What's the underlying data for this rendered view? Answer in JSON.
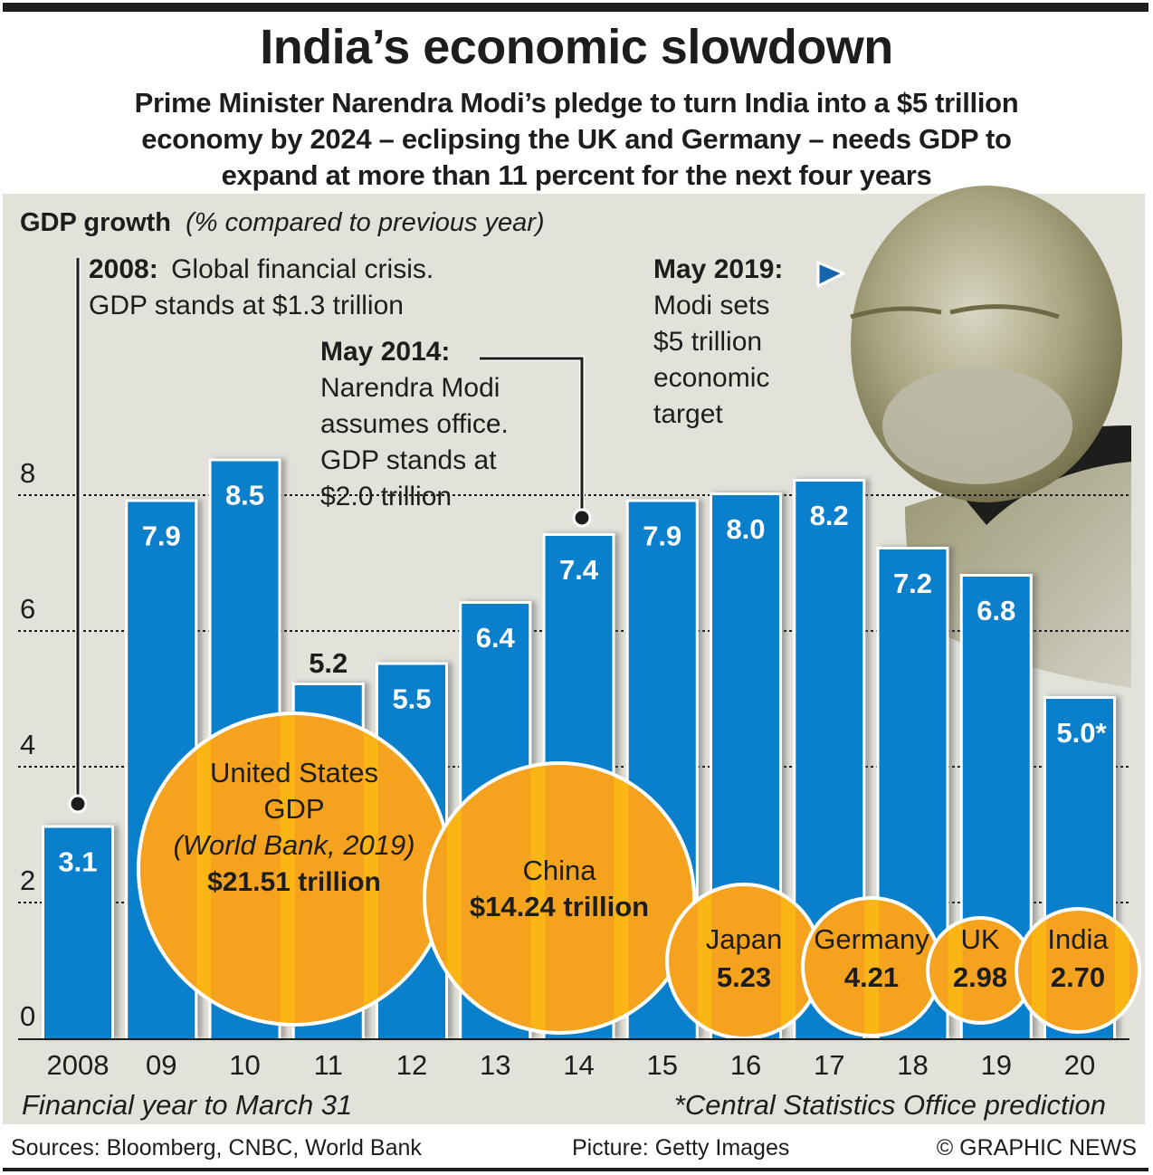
{
  "header": {
    "title": "India’s economic slowdown",
    "subtitle_lines": [
      "Prime Minister Narendra Modi’s pledge to turn India into a $5 trillion",
      "economy by 2024 – eclipsing the UK and Germany – needs GDP to",
      "expand at more than 11 percent for the next four years"
    ]
  },
  "colors": {
    "bar": "#0a7fcb",
    "bubble": "#f5a21f",
    "bubble_strip": "#fcb814",
    "panel": "#e2e1da",
    "text": "#1d1d1b",
    "marker": "#1565ad"
  },
  "chart_data": {
    "type": "bar",
    "title": "GDP growth",
    "title_note": "(% compared to previous year)",
    "xlabel": "Financial year to March 31",
    "ylabel": "",
    "ylim": [
      0,
      8
    ],
    "yticks": [
      0,
      2,
      4,
      6,
      8
    ],
    "grid": true,
    "categories": [
      "2008",
      "09",
      "10",
      "11",
      "12",
      "13",
      "14",
      "15",
      "16",
      "17",
      "18",
      "19",
      "20"
    ],
    "values": [
      3.1,
      7.9,
      8.5,
      5.2,
      5.5,
      6.4,
      7.4,
      7.9,
      8.0,
      8.2,
      7.2,
      6.8,
      5.0
    ],
    "value_labels": [
      "3.1",
      "7.9",
      "8.5",
      "5.2",
      "5.5",
      "6.4",
      "7.4",
      "7.9",
      "8.0",
      "8.2",
      "7.2",
      "6.8",
      "5.0*"
    ],
    "footnote": "*Central Statistics Office prediction",
    "annotations": [
      {
        "category": "2008",
        "bold": "2008:",
        "lines": [
          "Global financial crisis.",
          "GDP stands at $1.3 trillion"
        ]
      },
      {
        "category": "14",
        "bold": "May 2014:",
        "lines": [
          "Narendra Modi",
          "assumes office.",
          "GDP stands at",
          "$2.0 trillion"
        ]
      },
      {
        "category": "",
        "bold": "May 2019:",
        "lines": [
          "Modi sets",
          "$5 trillion",
          "economic",
          "target"
        ]
      }
    ],
    "gdp_bubbles": {
      "unit": "$ trillion",
      "items": [
        {
          "name": "United States",
          "lines": [
            "United States",
            "GDP",
            "(World Bank, 2019)"
          ],
          "value": 21.51,
          "label": "$21.51 trillion"
        },
        {
          "name": "China",
          "lines": [
            "China"
          ],
          "value": 14.24,
          "label": "$14.24 trillion"
        },
        {
          "name": "Japan",
          "lines": [
            "Japan"
          ],
          "value": 5.23,
          "label": "5.23"
        },
        {
          "name": "Germany",
          "lines": [
            "Germany"
          ],
          "value": 4.21,
          "label": "4.21"
        },
        {
          "name": "UK",
          "lines": [
            "UK"
          ],
          "value": 2.98,
          "label": "2.98"
        },
        {
          "name": "India",
          "lines": [
            "India"
          ],
          "value": 2.7,
          "label": "2.70"
        }
      ]
    }
  },
  "footer": {
    "sources": "Sources: Bloomberg, CNBC, World Bank",
    "picture": "Picture: Getty Images",
    "credit": "© GRAPHIC NEWS"
  },
  "image": {
    "icon": "portrait-photo",
    "subject": "Narendra Modi"
  }
}
